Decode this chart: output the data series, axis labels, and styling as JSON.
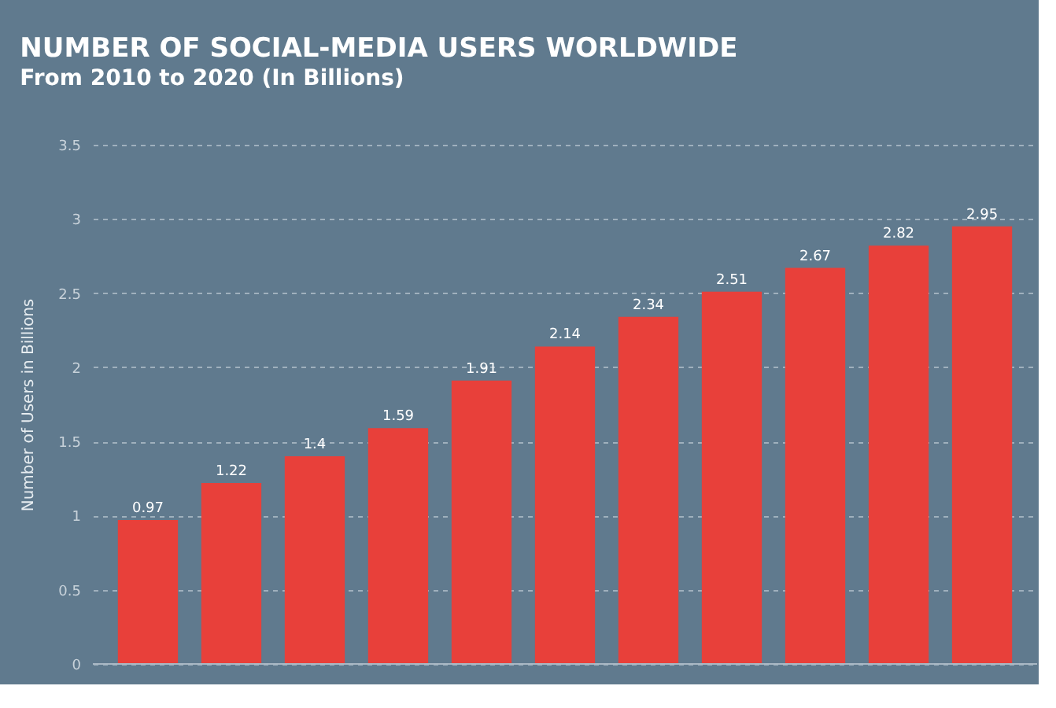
{
  "chart_data": {
    "type": "bar",
    "title": "NUMBER OF SOCIAL-MEDIA USERS WORLDWIDE",
    "subtitle": "From 2010 to 2020 (In Billions)",
    "ylabel": "Number of Users in Billions",
    "categories": [
      null,
      null,
      null,
      null,
      null,
      null,
      null,
      null,
      null,
      null,
      null
    ],
    "values": [
      0.97,
      1.22,
      1.4,
      1.59,
      1.91,
      2.14,
      2.34,
      2.51,
      2.67,
      2.82,
      2.95
    ],
    "color": "#e8403a",
    "ylim": [
      0,
      3.5
    ],
    "yticks": [
      0,
      0.5,
      1,
      1.5,
      2,
      2.5,
      3,
      3.5
    ],
    "grid": "y",
    "data_labels": true,
    "tick_labels": "y"
  }
}
